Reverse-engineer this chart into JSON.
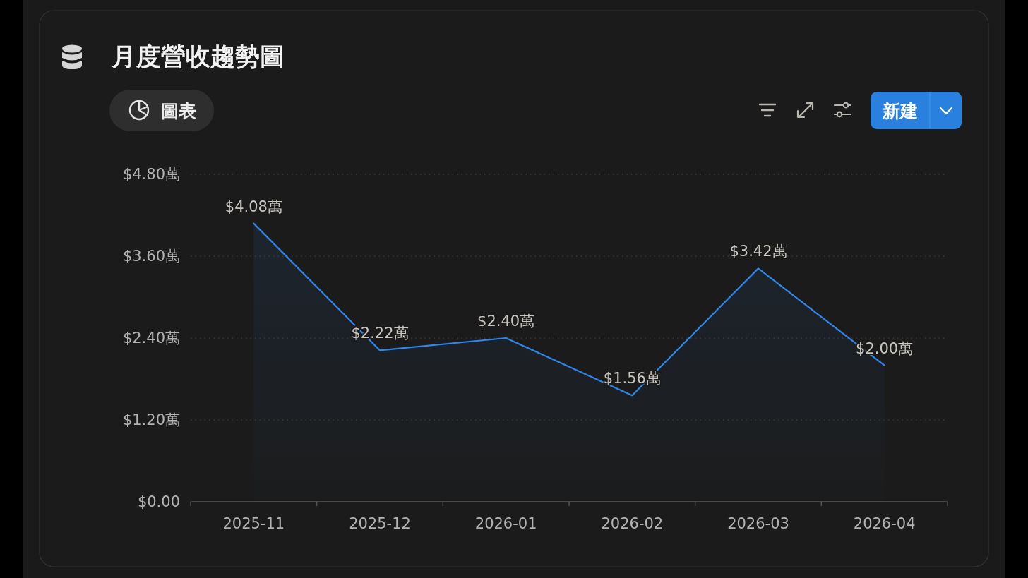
{
  "chart_data": {
    "type": "area",
    "title": "月度營收趨勢圖",
    "annotations": [
      "圖表",
      "新建"
    ],
    "categories": [
      "2025-11",
      "2025-12",
      "2026-01",
      "2026-02",
      "2026-03",
      "2026-04"
    ],
    "values": [
      4.08,
      2.22,
      2.4,
      1.56,
      3.42,
      2.0
    ],
    "color": "#2f86eb",
    "value_labels": [
      "$4.08萬",
      "$2.22萬",
      "$2.40萬",
      "$1.56萬",
      "$3.42萬",
      "$2.00萬"
    ],
    "ylim": [
      0,
      4.8
    ],
    "yticks": [
      {
        "value": 0,
        "label": "$0.00"
      },
      {
        "value": 1.2,
        "label": "$1.20萬"
      },
      {
        "value": 2.4,
        "label": "$2.40萬"
      },
      {
        "value": 3.6,
        "label": "$3.60萬"
      },
      {
        "value": 4.8,
        "label": "$4.80萬"
      }
    ],
    "grid": "y"
  }
}
